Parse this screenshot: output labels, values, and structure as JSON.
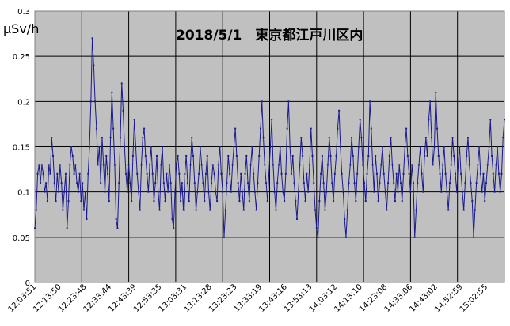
{
  "chart_data": {
    "type": "line",
    "title": "2018/5/1　東京都江戸川区内",
    "ylabel": "μSv/h",
    "xlabel": "",
    "ylim": [
      0,
      0.3
    ],
    "yticks": [
      "0",
      "0.05",
      "0.1",
      "0.15",
      "0.2",
      "0.25",
      "0.3"
    ],
    "grid": true,
    "legend": "none",
    "x_tick_labels": [
      "12:03:51",
      "12:13:50",
      "12:23:48",
      "12:33:44",
      "12:43:39",
      "12:53:35",
      "13:03:31",
      "13:13:28",
      "13:23:23",
      "13:33:19",
      "13:43:16",
      "13:53:13",
      "14:03:12",
      "14:13:10",
      "14:23:08",
      "14:33:06",
      "14:43:02",
      "14:52:59",
      "15:02:55"
    ],
    "colors": {
      "series": "#1a1a8c",
      "plot_bg": "#c0c0c0",
      "grid": "#000000"
    },
    "series": [
      {
        "name": "",
        "values": [
          0.06,
          0.08,
          0.12,
          0.13,
          0.11,
          0.13,
          0.12,
          0.1,
          0.11,
          0.09,
          0.13,
          0.12,
          0.16,
          0.14,
          0.11,
          0.09,
          0.12,
          0.1,
          0.13,
          0.11,
          0.08,
          0.1,
          0.12,
          0.06,
          0.09,
          0.13,
          0.15,
          0.14,
          0.12,
          0.13,
          0.11,
          0.1,
          0.12,
          0.09,
          0.11,
          0.08,
          0.1,
          0.07,
          0.12,
          0.15,
          0.2,
          0.27,
          0.24,
          0.2,
          0.17,
          0.13,
          0.15,
          0.11,
          0.16,
          0.13,
          0.1,
          0.14,
          0.12,
          0.09,
          0.16,
          0.21,
          0.17,
          0.13,
          0.07,
          0.06,
          0.11,
          0.16,
          0.22,
          0.19,
          0.15,
          0.12,
          0.1,
          0.13,
          0.11,
          0.09,
          0.14,
          0.18,
          0.15,
          0.12,
          0.1,
          0.08,
          0.13,
          0.16,
          0.17,
          0.14,
          0.12,
          0.1,
          0.13,
          0.15,
          0.12,
          0.09,
          0.11,
          0.14,
          0.1,
          0.08,
          0.13,
          0.15,
          0.11,
          0.09,
          0.12,
          0.1,
          0.13,
          0.11,
          0.07,
          0.06,
          0.1,
          0.13,
          0.14,
          0.12,
          0.09,
          0.11,
          0.08,
          0.12,
          0.14,
          0.11,
          0.09,
          0.13,
          0.16,
          0.14,
          0.11,
          0.08,
          0.1,
          0.12,
          0.15,
          0.13,
          0.11,
          0.09,
          0.12,
          0.14,
          0.1,
          0.08,
          0.11,
          0.13,
          0.12,
          0.1,
          0.09,
          0.13,
          0.15,
          0.12,
          0.1,
          0.05,
          0.08,
          0.11,
          0.14,
          0.12,
          0.1,
          0.13,
          0.15,
          0.17,
          0.14,
          0.11,
          0.09,
          0.12,
          0.1,
          0.08,
          0.12,
          0.14,
          0.11,
          0.09,
          0.13,
          0.15,
          0.12,
          0.1,
          0.08,
          0.11,
          0.14,
          0.17,
          0.2,
          0.16,
          0.13,
          0.11,
          0.09,
          0.12,
          0.15,
          0.18,
          0.13,
          0.1,
          0.08,
          0.11,
          0.13,
          0.15,
          0.12,
          0.1,
          0.09,
          0.12,
          0.17,
          0.2,
          0.15,
          0.12,
          0.14,
          0.11,
          0.09,
          0.07,
          0.1,
          0.13,
          0.16,
          0.14,
          0.11,
          0.09,
          0.12,
          0.1,
          0.13,
          0.17,
          0.14,
          0.11,
          0.08,
          0.06,
          0.05,
          0.09,
          0.12,
          0.14,
          0.11,
          0.08,
          0.1,
          0.13,
          0.16,
          0.14,
          0.11,
          0.09,
          0.12,
          0.14,
          0.17,
          0.19,
          0.15,
          0.12,
          0.1,
          0.07,
          0.05,
          0.08,
          0.11,
          0.13,
          0.16,
          0.14,
          0.11,
          0.09,
          0.12,
          0.15,
          0.18,
          0.16,
          0.13,
          0.11,
          0.09,
          0.12,
          0.14,
          0.2,
          0.17,
          0.13,
          0.1,
          0.14,
          0.12,
          0.09,
          0.11,
          0.13,
          0.15,
          0.12,
          0.1,
          0.08,
          0.11,
          0.14,
          0.16,
          0.13,
          0.11,
          0.09,
          0.12,
          0.1,
          0.13,
          0.11,
          0.09,
          0.12,
          0.15,
          0.17,
          0.14,
          0.12,
          0.1,
          0.13,
          0.11,
          0.05,
          0.08,
          0.11,
          0.13,
          0.15,
          0.12,
          0.1,
          0.14,
          0.16,
          0.14,
          0.18,
          0.2,
          0.16,
          0.13,
          0.15,
          0.21,
          0.17,
          0.14,
          0.12,
          0.1,
          0.13,
          0.15,
          0.12,
          0.1,
          0.08,
          0.11,
          0.13,
          0.16,
          0.14,
          0.12,
          0.1,
          0.13,
          0.15,
          0.12,
          0.1,
          0.08,
          0.11,
          0.14,
          0.16,
          0.13,
          0.11,
          0.09,
          0.05,
          0.08,
          0.11,
          0.13,
          0.15,
          0.12,
          0.1,
          0.12,
          0.09,
          0.11,
          0.13,
          0.15,
          0.18,
          0.14,
          0.12,
          0.1,
          0.13,
          0.15,
          0.12,
          0.1,
          0.12,
          0.16,
          0.18
        ]
      }
    ]
  }
}
